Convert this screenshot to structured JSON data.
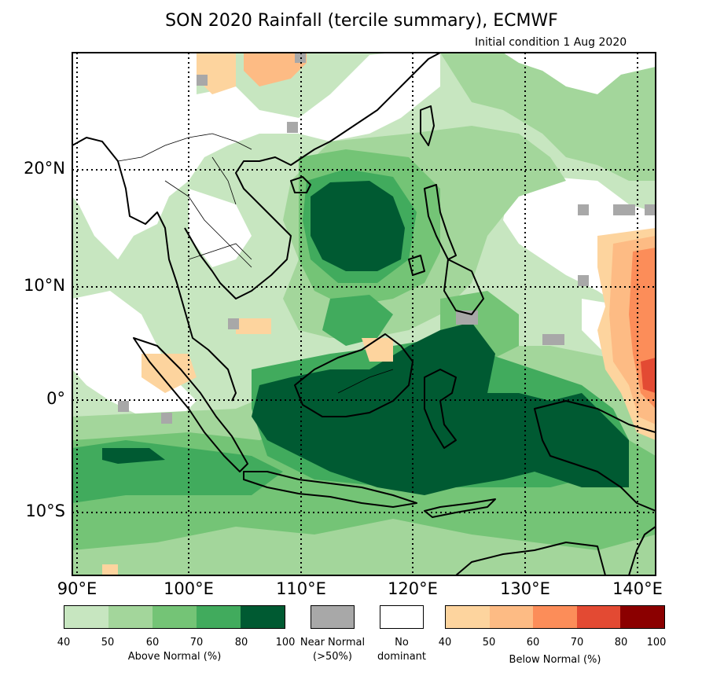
{
  "title": "SON 2020 Rainfall (tercile summary), ECMWF",
  "subtitle": "Initial condition 1 Aug 2020",
  "lat_labels": [
    "20°N",
    "10°N",
    "0°",
    "10°S"
  ],
  "lon_labels": [
    "90°E",
    "100°E",
    "110°E",
    "120°E",
    "130°E",
    "140°E"
  ],
  "legend": {
    "above": {
      "title": "Above Normal (%)",
      "ticks": [
        "40",
        "50",
        "60",
        "70",
        "80",
        "100"
      ],
      "colors": [
        "#c7e6c0",
        "#a3d69b",
        "#74c476",
        "#41ab5d",
        "#005a32"
      ]
    },
    "near": {
      "label1": "Near Normal",
      "label2": "(>50%)",
      "color": "#a8a8a8"
    },
    "none": {
      "label1": "No",
      "label2": "dominant",
      "color": "#ffffff"
    },
    "below": {
      "title": "Below Normal (%)",
      "ticks": [
        "40",
        "50",
        "60",
        "70",
        "80",
        "100"
      ],
      "colors": [
        "#fdd49e",
        "#fdbb84",
        "#fc8d59",
        "#e34a33",
        "#8b0000"
      ]
    }
  },
  "map_colors": {
    "land_outline": "#000000",
    "grid_dots": "#000000"
  }
}
